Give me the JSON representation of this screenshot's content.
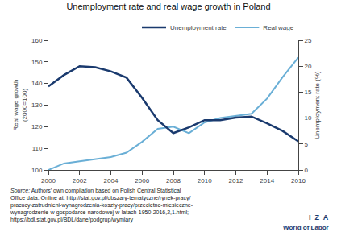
{
  "chart_data": {
    "type": "line",
    "title": "Unemployment rate and real wage growth in Poland",
    "x": [
      2000,
      2001,
      2002,
      2003,
      2004,
      2005,
      2006,
      2007,
      2008,
      2009,
      2010,
      2011,
      2012,
      2013,
      2014,
      2015,
      2016
    ],
    "series": [
      {
        "name": "Unemployment rate",
        "color": "#1a3a6e",
        "axis": "y2",
        "values": [
          16.1,
          18.3,
          20.0,
          19.8,
          19.0,
          17.8,
          13.9,
          9.6,
          7.1,
          8.2,
          9.6,
          9.6,
          10.1,
          10.3,
          9.0,
          7.5,
          5.5
        ]
      },
      {
        "name": "Real wage",
        "color": "#6aafd6",
        "values": [
          100,
          103,
          104,
          105,
          106,
          108,
          113,
          119,
          120,
          117,
          122,
          124,
          125,
          126,
          133,
          143,
          152
        ]
      }
    ],
    "xlim": [
      2000,
      2016
    ],
    "xticks": [
      2000,
      2002,
      2004,
      2006,
      2008,
      2010,
      2012,
      2014,
      2016
    ],
    "ylim": [
      100,
      160
    ],
    "yticks": [
      100,
      110,
      120,
      130,
      140,
      150,
      160
    ],
    "y2lim": [
      0,
      25
    ],
    "y2ticks": [
      0,
      5,
      10,
      15,
      20,
      25
    ],
    "ylabel": "Real wage growth\n(2000=100)",
    "y2label": "Unemployment rate (%)",
    "legend": "upper right",
    "grid": false,
    "annotations": [
      "Source:",
      " Authors’ own compilation based on Polish Central Statistical\nOffice data. Online at: http://stat.gov.pl/obszary-tematyczne/rynek-pracy/\npracucy-zatrudnieni-wynagrodzenia-koszty-pracy/przecietne-miesieczne-\nwynagrodzenie-w-gospodarce-narodowej-w-latach-1950-2016,2,1.html;\nhttps://bdl.stat.gov.pl/BDL/dane/podgrup/wymiary",
      "I  Z  A",
      "World of Labor"
    ]
  }
}
